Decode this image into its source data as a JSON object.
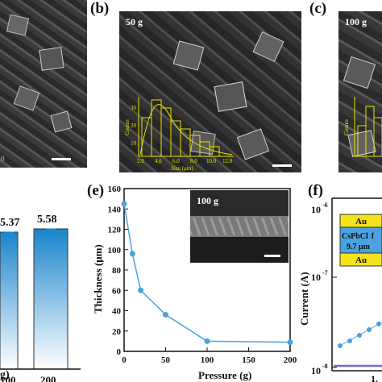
{
  "panels": {
    "b": {
      "label": "(b)",
      "tag": "50 g"
    },
    "c": {
      "label": "(c)",
      "tag": "100 g"
    },
    "e": {
      "label": "(e)"
    },
    "f": {
      "label": "(f)"
    }
  },
  "hist_b": {
    "ylabel": "Counts",
    "xlabel": "Size (μm)",
    "yticks": [
      "10",
      "20",
      "30"
    ],
    "xticks": [
      "2.0",
      "4.0",
      "6.0",
      "8.0",
      "10.0",
      "12.0"
    ],
    "c_ylabel": "Counts"
  },
  "panel_a": {
    "tick_label": "0"
  },
  "panel_d": {
    "bars": [
      {
        "category": "100",
        "value": 5.37,
        "label": "5.37"
      },
      {
        "category": "200",
        "value": 5.58,
        "label": "5.58"
      }
    ],
    "xlabel_partial": "g)"
  },
  "chart_data": [
    {
      "type": "line",
      "panel": "e",
      "xlabel": "Pressure (g)",
      "ylabel": "Thickness (μm)",
      "xlim": [
        0,
        200
      ],
      "ylim": [
        0,
        160
      ],
      "xticks": [
        "0",
        "50",
        "100",
        "150",
        "200"
      ],
      "yticks": [
        "0",
        "20",
        "40",
        "60",
        "80",
        "100",
        "120",
        "140",
        "160"
      ],
      "x": [
        0,
        10,
        20,
        50,
        100,
        200
      ],
      "y": [
        145,
        96,
        60,
        36,
        10,
        9
      ],
      "inset_tag": "100 g",
      "color": "#4aa3e0"
    },
    {
      "type": "scatter",
      "panel": "f",
      "ylabel": "Current (A)",
      "yticks": [
        "10",
        "10",
        "10"
      ],
      "yexponents": [
        "-6",
        "-7",
        "-8"
      ],
      "xtick_partial": "1.",
      "device": {
        "top": "Au",
        "middle_1": "CsPbCl",
        "middle_1b": "f",
        "middle_2": "9.7 μm",
        "bottom": "Au"
      },
      "color": "#4aa3e0"
    }
  ]
}
